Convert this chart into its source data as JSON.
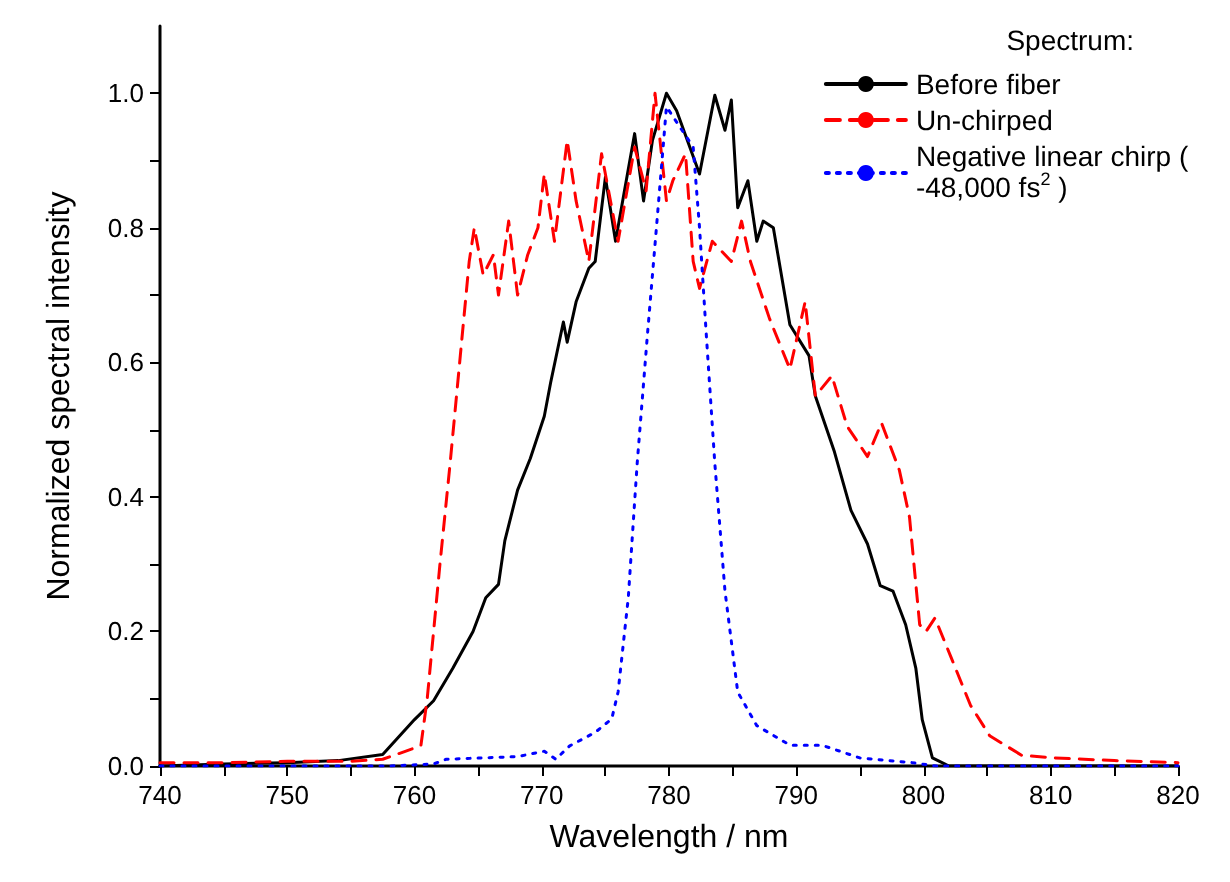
{
  "chart_data": {
    "type": "line",
    "xlabel": "Wavelength / nm",
    "ylabel": "Normalized spectral intensity",
    "legend_title": "Spectrum:",
    "legend": "top right",
    "grid": false,
    "marker": "none",
    "xlim": [
      740,
      820
    ],
    "ylim": [
      0,
      1.1
    ],
    "xticks": [
      740,
      {
        "value": 745,
        "label": null
      },
      750,
      {
        "value": 755,
        "label": null
      },
      760,
      {
        "value": 765,
        "label": null
      },
      770,
      {
        "value": 775,
        "label": null
      },
      780,
      {
        "value": 785,
        "label": null
      },
      790,
      {
        "value": 795,
        "label": null
      },
      800,
      {
        "value": 805,
        "label": null
      },
      810,
      {
        "value": 815,
        "label": null
      },
      820
    ],
    "yticks": [
      {
        "value": 0,
        "label": "0.0"
      },
      {
        "value": 0.1,
        "label": null
      },
      {
        "value": 0.2,
        "label": "0.2"
      },
      {
        "value": 0.3,
        "label": null
      },
      {
        "value": 0.4,
        "label": "0.4"
      },
      {
        "value": 0.5,
        "label": null
      },
      {
        "value": 0.6,
        "label": "0.6"
      },
      {
        "value": 0.7,
        "label": null
      },
      {
        "value": 0.8,
        "label": "0.8"
      },
      {
        "value": 0.9,
        "label": null
      },
      {
        "value": 1.0,
        "label": "1.0"
      }
    ],
    "series": [
      {
        "name": "Before fiber",
        "color": "#000000",
        "line_style": "solid",
        "x": [
          740,
          745,
          750,
          754,
          757.5,
          760,
          761.5,
          763,
          764.6,
          765.6,
          766.6,
          767.1,
          768.1,
          769.1,
          770.2,
          770.7,
          771.7,
          772,
          772.7,
          773.7,
          774.2,
          775,
          775.8,
          776.5,
          777.3,
          778,
          778.7,
          779.8,
          780.6,
          782.4,
          783.6,
          784.4,
          784.9,
          785.4,
          786.2,
          786.9,
          787.4,
          788.2,
          789.5,
          791,
          791.5,
          793,
          794.3,
          795.6,
          796.6,
          797.6,
          798.6,
          799.4,
          799.9,
          800.7,
          802,
          810,
          820
        ],
        "values": [
          0,
          0.003,
          0.005,
          0.008,
          0.017,
          0.069,
          0.097,
          0.145,
          0.2,
          0.25,
          0.27,
          0.335,
          0.41,
          0.457,
          0.52,
          0.57,
          0.66,
          0.63,
          0.69,
          0.74,
          0.75,
          0.875,
          0.78,
          0.855,
          0.94,
          0.84,
          0.93,
          1.0,
          0.974,
          0.88,
          0.997,
          0.945,
          0.99,
          0.83,
          0.87,
          0.78,
          0.81,
          0.8,
          0.656,
          0.61,
          0.55,
          0.467,
          0.38,
          0.33,
          0.268,
          0.26,
          0.21,
          0.145,
          0.069,
          0.012,
          0,
          0,
          0
        ]
      },
      {
        "name": "Un-chirped",
        "color": "#ff0000",
        "line_style": "dashed",
        "x": [
          740,
          745,
          750,
          755,
          757.5,
          759,
          760.5,
          761,
          762,
          762.8,
          763.6,
          764.3,
          764.7,
          765.4,
          766.2,
          766.6,
          767.4,
          768.1,
          768.9,
          769.7,
          770.2,
          771,
          772,
          772.7,
          773.7,
          774.7,
          776,
          777.3,
          778.2,
          778.9,
          779.8,
          780.3,
          781.3,
          781.9,
          782.4,
          783.4,
          784.9,
          785.7,
          786.4,
          787.9,
          789.5,
          790.7,
          791.5,
          792.8,
          794,
          795.6,
          796.7,
          798.1,
          798.9,
          799.7,
          800.2,
          800.9,
          802.2,
          803.7,
          805.2,
          807.7,
          810.3,
          815,
          820
        ],
        "values": [
          0.005,
          0.005,
          0.007,
          0.007,
          0.01,
          0.02,
          0.03,
          0.1,
          0.3,
          0.45,
          0.61,
          0.75,
          0.8,
          0.73,
          0.76,
          0.7,
          0.81,
          0.7,
          0.76,
          0.8,
          0.88,
          0.78,
          0.93,
          0.84,
          0.75,
          0.91,
          0.78,
          0.92,
          0.855,
          1.0,
          0.84,
          0.87,
          0.91,
          0.75,
          0.71,
          0.78,
          0.75,
          0.81,
          0.75,
          0.665,
          0.59,
          0.69,
          0.55,
          0.58,
          0.505,
          0.46,
          0.51,
          0.44,
          0.37,
          0.21,
          0.2,
          0.22,
          0.16,
          0.09,
          0.045,
          0.016,
          0.012,
          0.008,
          0.005
        ]
      },
      {
        "name": "Negative linear chirp ( -48,000 fs$^{2}$ )",
        "color": "#0000ff",
        "line_style": "dotted",
        "x": [
          740,
          750,
          758,
          761.5,
          762.5,
          768.1,
          770.2,
          771.1,
          772.2,
          774.2,
          775.5,
          776,
          776.8,
          777.5,
          778.3,
          779.1,
          779.8,
          781.9,
          782.4,
          782.9,
          783.6,
          784.4,
          785.4,
          786.9,
          789.5,
          792,
          795,
          799.1,
          801,
          810,
          820
        ],
        "values": [
          0,
          0,
          0,
          0.003,
          0.01,
          0.014,
          0.022,
          0.01,
          0.03,
          0.05,
          0.07,
          0.11,
          0.25,
          0.45,
          0.64,
          0.82,
          0.98,
          0.92,
          0.8,
          0.65,
          0.45,
          0.26,
          0.11,
          0.06,
          0.031,
          0.031,
          0.012,
          0.005,
          0,
          0,
          0
        ]
      }
    ]
  }
}
